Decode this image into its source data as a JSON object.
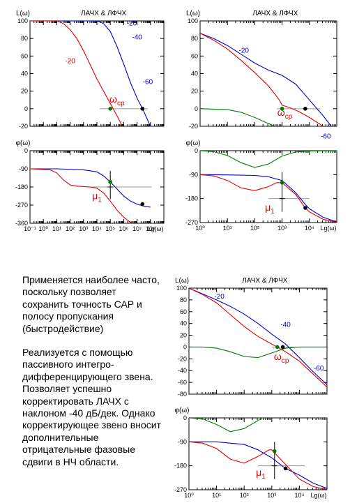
{
  "description": {
    "paragraph_1": "Применяется наиболее часто, поскольку позволяет сохранить точность САР и полосу пропускания (быстродействие)",
    "paragraph_2": "Реализуется с помощью пассивного интегро-дифференцирующего звена. Позволяет успешно корректировать ЛАЧХ с наклоном -40 дБ/дек. Однако корректирующее звено вносит дополнительные отрицательные фазовые сдвиги в НЧ области."
  },
  "colors": {
    "blue": "#0000c8",
    "red": "#e00000",
    "green": "#007a00",
    "grid": "#9a9a9a"
  },
  "chart_data": [
    {
      "id": "amp_top_left",
      "type": "line",
      "title": "ЛАЧХ & ЛФЧХ",
      "ylabel": "L(ω)",
      "xlog": [
        -1,
        9
      ],
      "ylim": [
        -20,
        100
      ],
      "yticks": [
        "100",
        "80",
        "60",
        "40",
        "20",
        "0",
        "-20"
      ],
      "series": [
        {
          "color": "blue",
          "points": [
            [
              -1,
              100
            ],
            [
              4,
              100
            ],
            [
              4.5,
              97
            ],
            [
              5,
              88
            ],
            [
              5.5,
              71
            ],
            [
              6,
              51
            ],
            [
              6.5,
              30
            ],
            [
              7,
              12
            ],
            [
              7.5,
              -3
            ],
            [
              8,
              -20
            ]
          ]
        },
        {
          "color": "red",
          "points": [
            [
              -1,
              100
            ],
            [
              1,
              100
            ],
            [
              1.5,
              97
            ],
            [
              2,
              90
            ],
            [
              2.5,
              80
            ],
            [
              3,
              66
            ],
            [
              3.5,
              50
            ],
            [
              4,
              34
            ],
            [
              4.5,
              20
            ],
            [
              5,
              6
            ],
            [
              5.5,
              -8
            ],
            [
              5.9,
              -20
            ]
          ]
        }
      ],
      "hline": {
        "y": 0,
        "x": [
          4.2,
          7.8
        ]
      },
      "markers": [
        {
          "x": 5,
          "y": 0,
          "color": "green"
        },
        {
          "x": 7.4,
          "y": 0,
          "color": "black"
        }
      ],
      "labels": [
        {
          "text": "-20",
          "x": 6.6,
          "y": 95,
          "color": "blue"
        },
        {
          "text": "-40",
          "x": 7.0,
          "y": 79,
          "color": "blue"
        },
        {
          "text": "-60",
          "x": 7.8,
          "y": 28,
          "color": "blue"
        },
        {
          "text": "-20",
          "x": 2.0,
          "y": 52,
          "color": "red"
        },
        {
          "text": "ωcp",
          "x": 5.5,
          "y": 7,
          "color": "red"
        }
      ]
    },
    {
      "id": "amp_top_right",
      "type": "line",
      "title": "ЛАЧХ & ЛФЧХ",
      "ylabel": "L(ω)",
      "xlog": [
        0,
        5
      ],
      "ylim": [
        -20,
        100
      ],
      "yticks": [
        "100",
        "80",
        "60",
        "40",
        "20",
        "0",
        "-20"
      ],
      "series": [
        {
          "color": "blue",
          "points": [
            [
              0,
              86
            ],
            [
              0.5,
              80
            ],
            [
              1,
              72
            ],
            [
              1.5,
              62
            ],
            [
              2,
              52
            ],
            [
              2.5,
              44
            ],
            [
              3,
              38
            ],
            [
              3.5,
              28
            ],
            [
              4,
              10
            ],
            [
              4.5,
              -8
            ],
            [
              5,
              -28
            ]
          ]
        },
        {
          "color": "red",
          "points": [
            [
              0,
              86
            ],
            [
              0.5,
              78
            ],
            [
              1,
              68
            ],
            [
              1.5,
              55
            ],
            [
              2,
              41
            ],
            [
              2.5,
              26
            ],
            [
              2.9,
              10
            ],
            [
              3,
              4
            ],
            [
              3.3,
              1
            ],
            [
              3.6,
              -3
            ],
            [
              4,
              -10
            ],
            [
              4.5,
              -20
            ],
            [
              5,
              -30
            ]
          ]
        },
        {
          "color": "green",
          "points": [
            [
              0,
              0
            ],
            [
              1,
              -1
            ],
            [
              1.5,
              -4
            ],
            [
              2,
              -10
            ],
            [
              2.5,
              -17
            ],
            [
              3,
              -23
            ],
            [
              3.5,
              -25
            ],
            [
              4,
              -26
            ],
            [
              5,
              -26
            ]
          ]
        }
      ],
      "hline": {
        "y": 0,
        "x": [
          2.8,
          4.4
        ]
      },
      "markers": [
        {
          "x": 3.0,
          "y": 0,
          "color": "green"
        },
        {
          "x": 3.85,
          "y": 0,
          "color": "black"
        }
      ],
      "labels": [
        {
          "text": "-20",
          "x": 1.6,
          "y": 64,
          "color": "blue"
        },
        {
          "text": "-60",
          "x": 4.6,
          "y": -34,
          "color": "blue"
        },
        {
          "text": "ωcp",
          "x": 3.1,
          "y": -8,
          "color": "red"
        }
      ]
    },
    {
      "id": "phase_top_left",
      "type": "line",
      "ylabel": "φ(ω)",
      "xlog": [
        -1,
        9
      ],
      "ylim": [
        -360,
        0
      ],
      "yticks": [
        "0",
        "-90",
        "-180",
        "-270",
        "-360"
      ],
      "xticks": [
        "10⁻¹",
        "10⁰",
        "10¹",
        "10²",
        "10³",
        "10⁴",
        "10⁵",
        "10⁶",
        "10⁷",
        "10⁸",
        "Lg(ω)"
      ],
      "series": [
        {
          "color": "blue",
          "points": [
            [
              -1,
              -90
            ],
            [
              1,
              -90
            ],
            [
              3,
              -95
            ],
            [
              4,
              -105
            ],
            [
              4.5,
              -125
            ],
            [
              5,
              -155
            ],
            [
              5.5,
              -190
            ],
            [
              6,
              -225
            ],
            [
              6.5,
              -250
            ],
            [
              7,
              -265
            ],
            [
              7.5,
              -275
            ],
            [
              8,
              -280
            ]
          ]
        },
        {
          "color": "red",
          "points": [
            [
              -1,
              -90
            ],
            [
              0.5,
              -95
            ],
            [
              1,
              -110
            ],
            [
              1.5,
              -145
            ],
            [
              2,
              -170
            ],
            [
              2.5,
              -176
            ],
            [
              3,
              -178
            ],
            [
              3.5,
              -180
            ],
            [
              4,
              -186
            ],
            [
              4.5,
              -210
            ],
            [
              5,
              -250
            ],
            [
              5.5,
              -295
            ],
            [
              6,
              -330
            ],
            [
              6.5,
              -355
            ],
            [
              6.8,
              -360
            ]
          ]
        }
      ],
      "hline": {
        "y": -180,
        "x": [
          3.5,
          8.1
        ]
      },
      "vline": {
        "x": 5,
        "y": [
          -100,
          -240
        ]
      },
      "markers": [
        {
          "x": 5,
          "y": -155,
          "color": "green"
        },
        {
          "x": 7.4,
          "y": -265,
          "color": "black"
        }
      ],
      "labels": [
        {
          "text": "μ1",
          "x": 4.0,
          "y": -240,
          "color": "red"
        }
      ]
    },
    {
      "id": "phase_top_right",
      "type": "line",
      "ylabel": "φ(ω)",
      "xlog": [
        0,
        5
      ],
      "ylim": [
        -270,
        0
      ],
      "yticks": [
        "0",
        "-90",
        "-180",
        "-270"
      ],
      "xticks": [
        "10⁰",
        "10¹",
        "10²",
        "10³",
        "10⁴",
        "Lg(ω)"
      ],
      "series": [
        {
          "color": "green",
          "points": [
            [
              0,
              0
            ],
            [
              0.5,
              -4
            ],
            [
              1,
              -18
            ],
            [
              1.5,
              -45
            ],
            [
              2,
              -63
            ],
            [
              2.5,
              -50
            ],
            [
              3,
              -20
            ],
            [
              3.5,
              -5
            ],
            [
              4,
              -1
            ],
            [
              5,
              0
            ]
          ]
        },
        {
          "color": "blue",
          "points": [
            [
              0,
              -90
            ],
            [
              1,
              -91
            ],
            [
              2,
              -93
            ],
            [
              2.5,
              -98
            ],
            [
              3,
              -112
            ],
            [
              3.5,
              -158
            ],
            [
              3.85,
              -202
            ],
            [
              4,
              -218
            ],
            [
              4.5,
              -250
            ],
            [
              5,
              -268
            ]
          ]
        },
        {
          "color": "red",
          "points": [
            [
              0,
              -90
            ],
            [
              0.5,
              -95
            ],
            [
              1,
              -112
            ],
            [
              1.5,
              -140
            ],
            [
              2,
              -150
            ],
            [
              2.5,
              -135
            ],
            [
              2.8,
              -120
            ],
            [
              3,
              -120
            ],
            [
              3.5,
              -165
            ],
            [
              3.85,
              -215
            ],
            [
              4,
              -230
            ],
            [
              4.5,
              -258
            ],
            [
              5,
              -270
            ]
          ]
        }
      ],
      "hline": {
        "y": -180,
        "x": [
          2.5,
          4.0
        ]
      },
      "vline": {
        "x": 3.0,
        "y": [
          -80,
          -230
        ]
      },
      "markers": [
        {
          "x": 3.0,
          "y": -120,
          "color": "green"
        },
        {
          "x": 3.85,
          "y": -215,
          "color": "black"
        }
      ],
      "labels": [
        {
          "text": "μ1",
          "x": 2.55,
          "y": -225,
          "color": "red"
        }
      ]
    },
    {
      "id": "amp_bottom",
      "type": "line",
      "title": "ЛАЧХ & ЛФЧХ",
      "ylabel": "L(ω)",
      "xlog": [
        0,
        5
      ],
      "ylim": [
        -80,
        100
      ],
      "yticks": [
        "100",
        "80",
        "60",
        "40",
        "20",
        "0",
        "-20",
        "-40",
        "-60",
        "-80"
      ],
      "series": [
        {
          "color": "blue",
          "points": [
            [
              0,
              100
            ],
            [
              0.5,
              90
            ],
            [
              1,
              80
            ],
            [
              1.5,
              69
            ],
            [
              2,
              56
            ],
            [
              2.5,
              40
            ],
            [
              3,
              22
            ],
            [
              3.5,
              5
            ],
            [
              4,
              -18
            ],
            [
              4.5,
              -42
            ],
            [
              5,
              -64
            ]
          ]
        },
        {
          "color": "red",
          "points": [
            [
              0,
              100
            ],
            [
              0.5,
              89
            ],
            [
              1,
              75
            ],
            [
              1.5,
              55
            ],
            [
              2,
              35
            ],
            [
              2.5,
              18
            ],
            [
              3,
              5
            ],
            [
              3.5,
              -8
            ],
            [
              4,
              -24
            ],
            [
              4.5,
              -46
            ],
            [
              5,
              -68
            ]
          ]
        },
        {
          "color": "green",
          "points": [
            [
              0,
              0
            ],
            [
              0.5,
              0
            ],
            [
              1,
              -2
            ],
            [
              1.5,
              -8
            ],
            [
              2,
              -16
            ],
            [
              2.5,
              -18
            ],
            [
              3,
              -10
            ],
            [
              3.5,
              -2
            ],
            [
              4,
              0
            ],
            [
              5,
              0
            ]
          ]
        }
      ],
      "hline": {
        "y": 0,
        "x": [
          3.0,
          3.8
        ]
      },
      "markers": [
        {
          "x": 3.2,
          "y": 0,
          "color": "green"
        },
        {
          "x": 3.4,
          "y": 0,
          "color": "black"
        }
      ],
      "labels": [
        {
          "text": "-20",
          "x": 1.1,
          "y": 82,
          "color": "blue"
        },
        {
          "text": "-40",
          "x": 3.5,
          "y": 34,
          "color": "blue"
        },
        {
          "text": "-60",
          "x": 4.7,
          "y": -40,
          "color": "blue"
        },
        {
          "text": "ωcp",
          "x": 3.35,
          "y": -22,
          "color": "red"
        }
      ]
    },
    {
      "id": "phase_bottom",
      "type": "line",
      "ylabel": "φ(ω)",
      "xlog": [
        0,
        5
      ],
      "ylim": [
        -270,
        0
      ],
      "yticks": [
        "0",
        "-90",
        "-180",
        "-270"
      ],
      "xticks": [
        "10⁰",
        "10¹",
        "10²",
        "10³",
        "10⁴",
        "Lg(ω)"
      ],
      "series": [
        {
          "color": "green",
          "points": [
            [
              0,
              0
            ],
            [
              0.5,
              -4
            ],
            [
              1,
              -25
            ],
            [
              1.5,
              -52
            ],
            [
              2,
              -40
            ],
            [
              2.5,
              -10
            ],
            [
              3,
              22
            ],
            [
              3.5,
              30
            ],
            [
              4,
              12
            ],
            [
              4.5,
              2
            ],
            [
              5,
              0
            ]
          ]
        },
        {
          "color": "blue",
          "points": [
            [
              0,
              -90
            ],
            [
              1,
              -90
            ],
            [
              2,
              -100
            ],
            [
              2.5,
              -120
            ],
            [
              3,
              -150
            ],
            [
              3.5,
              -190
            ],
            [
              4,
              -215
            ],
            [
              4.5,
              -245
            ],
            [
              5,
              -265
            ]
          ]
        },
        {
          "color": "red",
          "points": [
            [
              0,
              -90
            ],
            [
              0.5,
              -95
            ],
            [
              1,
              -115
            ],
            [
              1.5,
              -155
            ],
            [
              2,
              -170
            ],
            [
              2.5,
              -145
            ],
            [
              2.9,
              -120
            ],
            [
              3,
              -120
            ],
            [
              3.5,
              -175
            ],
            [
              4,
              -230
            ],
            [
              4.5,
              -258
            ],
            [
              5,
              -270
            ]
          ]
        }
      ],
      "hline": {
        "y": -180,
        "x": [
          2.5,
          4.2
        ]
      },
      "vline": {
        "x": 3.1,
        "y": [
          -90,
          -230
        ]
      },
      "markers": [
        {
          "x": 3.1,
          "y": -125,
          "color": "green"
        },
        {
          "x": 3.5,
          "y": -190,
          "color": "black"
        }
      ],
      "labels": [
        {
          "text": "μ1",
          "x": 2.6,
          "y": -218,
          "color": "red"
        }
      ]
    }
  ]
}
